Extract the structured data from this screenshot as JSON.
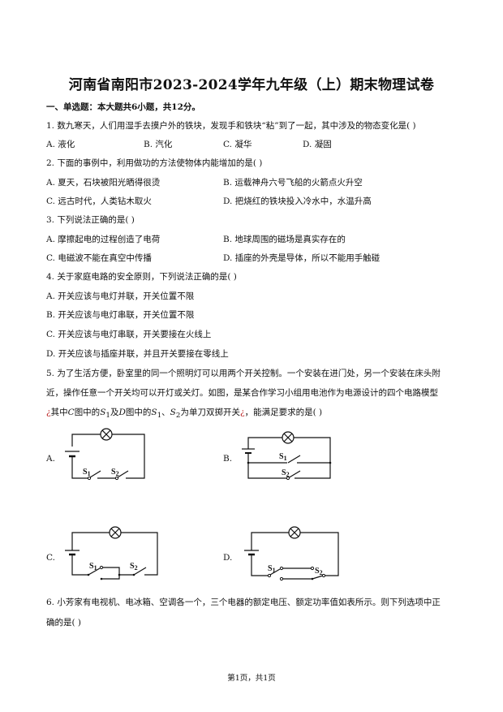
{
  "title": "河南省南阳市2023-2024学年九年级（上）期末物理试卷",
  "section": "一、单选题：本大题共6小题，共12分。",
  "questions": [
    {
      "stem": "1. 数九寒天，人们用湿手去摸户外的铁块，发现手和铁块“粘”到了一起，其中涉及的物态变化是(    )",
      "options": [
        "A. 液化",
        "B. 汽化",
        "C. 凝华",
        "D. 凝固"
      ]
    },
    {
      "stem": "2. 下面的事例中，利用做功的方法使物体内能增加的是(    )",
      "options": [
        "A. 夏天，石块被阳光晒得很烫",
        "B. 运载神舟六号飞船的火箭点火升空",
        "C. 远古时代，人类钻木取火",
        "D. 把烧红的铁块投入冷水中，水温升高"
      ]
    },
    {
      "stem": "3. 下列说法正确的是(    )",
      "options": [
        "A. 摩擦起电的过程创造了电荷",
        "B. 地球周围的磁场是真实存在的",
        "C. 电磁波不能在真空中传播",
        "D. 插座的外壳是导体，所以不能用手触碰"
      ]
    },
    {
      "stem": "4. 关于家庭电路的安全原则，下列说法正确的是(    )",
      "options": [
        "A. 开关应该与电灯并联，开关位置不限",
        "B. 开关应该与电灯串联，开关位置不限",
        "C. 开关应该与电灯串联，开关要接在火线上",
        "D. 开关应该与插座并联，并且开关要接在零线上"
      ]
    },
    {
      "stem_lines": [
        "5. 为了生活方便，卧室里的同一个照明灯可以用两个开关控制。一个安装在进门处，另一个安装在床头附",
        "近，操作任意一个开关均可以开灯或关灯。如图，是某合作学习小组用电池作为电源设计的四个电路模型"
      ],
      "stem_line3": {
        "mark": "¿",
        "p1": "其中",
        "c": "C",
        "p2": "图中的",
        "s1": "S",
        "sub1": "1",
        "p3": "及",
        "d": "D",
        "p4": "图中的",
        "s1b": "S",
        "sub1b": "1",
        "p5": "、",
        "s2": "S",
        "sub2": "2",
        "p6": "为单刀双掷开关",
        "p7": "，能满足要求的是(    )"
      },
      "options": [
        "A.",
        "B.",
        "C.",
        "D."
      ],
      "switch_labels": {
        "s1": "S1",
        "s2": "S2"
      }
    },
    {
      "stem_lines": [
        "6. 小芳家有电视机、电冰箱、空调各一个，三个电器的额定电压、额定功率值如表所示。则下列选项中正",
        "确的是(    )"
      ]
    }
  ],
  "footer": "第1页，共1页"
}
